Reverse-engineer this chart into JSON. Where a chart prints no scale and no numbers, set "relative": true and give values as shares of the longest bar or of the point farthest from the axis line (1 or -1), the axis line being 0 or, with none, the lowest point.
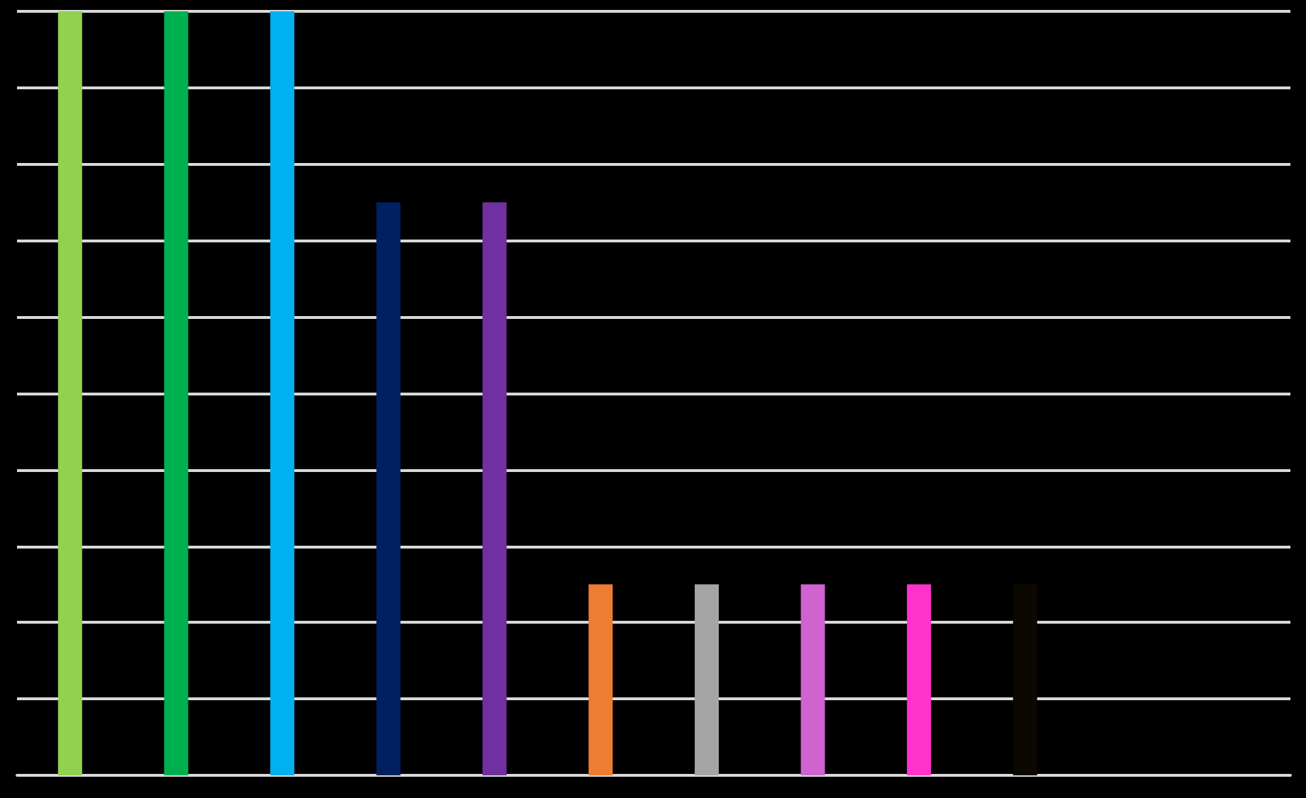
{
  "chart_data": {
    "type": "bar",
    "relative": true,
    "grid": "y",
    "categories": [
      null,
      null,
      null,
      null,
      null,
      null,
      null,
      null,
      null,
      null
    ],
    "values": [
      1,
      1,
      1,
      0.75,
      0.75,
      0.25,
      0.25,
      0.25,
      0.25,
      0.25
    ],
    "colors": [
      "#92d050",
      "#00b050",
      "#00b0f0",
      "#002060",
      "#7030a0",
      "#ed7d31",
      "#a5a5a5",
      "#d063d0",
      "#ff33cc",
      "#0c0800"
    ]
  }
}
